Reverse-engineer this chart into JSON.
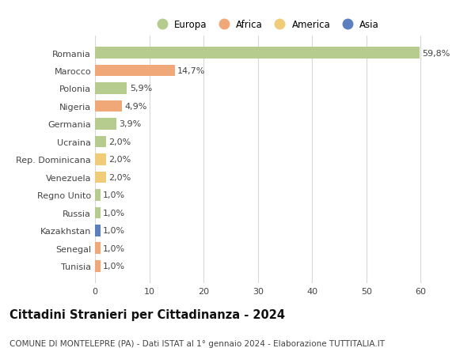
{
  "countries": [
    "Romania",
    "Marocco",
    "Polonia",
    "Nigeria",
    "Germania",
    "Ucraina",
    "Rep. Dominicana",
    "Venezuela",
    "Regno Unito",
    "Russia",
    "Kazakhstan",
    "Senegal",
    "Tunisia"
  ],
  "values": [
    59.8,
    14.7,
    5.9,
    4.9,
    3.9,
    2.0,
    2.0,
    2.0,
    1.0,
    1.0,
    1.0,
    1.0,
    1.0
  ],
  "labels": [
    "59,8%",
    "14,7%",
    "5,9%",
    "4,9%",
    "3,9%",
    "2,0%",
    "2,0%",
    "2,0%",
    "1,0%",
    "1,0%",
    "1,0%",
    "1,0%",
    "1,0%"
  ],
  "continents": [
    "Europa",
    "Africa",
    "Europa",
    "Africa",
    "Europa",
    "Europa",
    "America",
    "America",
    "Europa",
    "Europa",
    "Asia",
    "Africa",
    "Africa"
  ],
  "continent_colors": {
    "Europa": "#b5cc8e",
    "Africa": "#f0a878",
    "America": "#f0cc78",
    "Asia": "#5b7fbf"
  },
  "legend_order": [
    "Europa",
    "Africa",
    "America",
    "Asia"
  ],
  "title": "Cittadini Stranieri per Cittadinanza - 2024",
  "subtitle": "COMUNE DI MONTELEPRE (PA) - Dati ISTAT al 1° gennaio 2024 - Elaborazione TUTTITALIA.IT",
  "xlim": [
    0,
    63
  ],
  "xticks": [
    0,
    10,
    20,
    30,
    40,
    50,
    60
  ],
  "bg_color": "#ffffff",
  "grid_color": "#d8d8d8",
  "bar_height": 0.65,
  "label_fontsize": 8,
  "title_fontsize": 10.5,
  "subtitle_fontsize": 7.5,
  "tick_fontsize": 8,
  "legend_fontsize": 8.5
}
